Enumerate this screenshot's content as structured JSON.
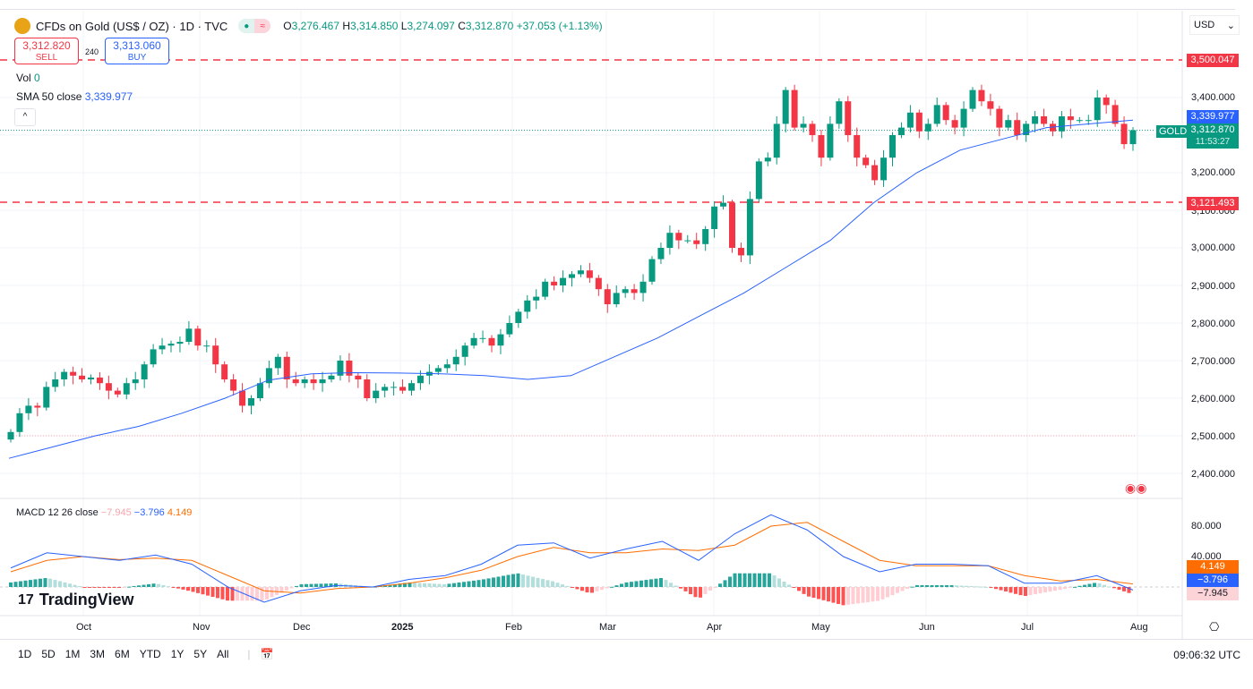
{
  "header": {
    "symbol": "CFDs on Gold (US$ / OZ) · 1D · TVC",
    "open_label": "O",
    "open": "3,276.467",
    "high_label": "H",
    "high": "3,314.850",
    "low_label": "L",
    "low": "3,274.097",
    "close_label": "C",
    "close": "3,312.870",
    "change": "+37.053 (+1.13%)"
  },
  "trade": {
    "sell_price": "3,312.820",
    "sell_label": "SELL",
    "spread": "240",
    "buy_price": "3,313.060",
    "buy_label": "BUY"
  },
  "indicators": {
    "vol_label": "Vol",
    "vol_value": "0",
    "sma_label": "SMA 50 close",
    "sma_value": "3,339.977",
    "macd_label": "MACD 12 26 close",
    "macd_hist": "−7.945",
    "macd_line": "−3.796",
    "macd_signal": "4.149"
  },
  "currency": "USD",
  "price_axis": {
    "labels": [
      "3,400.000",
      "3,200.000",
      "3,100.000",
      "3,000.000",
      "2,900.000",
      "2,800.000",
      "2,700.000",
      "2,600.000",
      "2,500.000",
      "2,400.000"
    ],
    "tags": {
      "resistance": "3,500.047",
      "sma": "3,339.977",
      "last": "3,312.870",
      "countdown": "11:53:27",
      "symbol_tag": "GOLD",
      "support": "3,121.493"
    }
  },
  "macd_axis": {
    "labels": [
      "80.000",
      "40.000"
    ]
  },
  "time_axis": [
    "Oct",
    "Nov",
    "Dec",
    "2025",
    "Feb",
    "Mar",
    "Apr",
    "May",
    "Jun",
    "Jul",
    "Aug"
  ],
  "bottom": {
    "ranges": [
      "1D",
      "5D",
      "1M",
      "3M",
      "6M",
      "YTD",
      "1Y",
      "5Y",
      "All"
    ],
    "clock": "09:06:32 UTC",
    "brand": "TradingView"
  },
  "colors": {
    "up": "#089981",
    "down": "#f23645",
    "sma": "#2962ff",
    "macd": "#2962ff",
    "signal": "#ff6d00"
  },
  "chart_data": {
    "type": "candlestick",
    "x_range": [
      "2024-09-12",
      "2025-07-30"
    ],
    "ylim": [
      2350,
      3560
    ],
    "hlines": [
      3500.047,
      3121.493
    ],
    "closes": [
      2510,
      2560,
      2580,
      2575,
      2630,
      2650,
      2670,
      2660,
      2650,
      2655,
      2640,
      2620,
      2610,
      2640,
      2650,
      2690,
      2730,
      2740,
      2745,
      2750,
      2785,
      2740,
      2740,
      2690,
      2650,
      2620,
      2580,
      2600,
      2640,
      2680,
      2710,
      2650,
      2640,
      2650,
      2640,
      2650,
      2660,
      2700,
      2660,
      2650,
      2600,
      2620,
      2630,
      2630,
      2620,
      2640,
      2660,
      2670,
      2680,
      2690,
      2710,
      2740,
      2760,
      2760,
      2740,
      2770,
      2800,
      2830,
      2860,
      2870,
      2910,
      2900,
      2920,
      2930,
      2940,
      2920,
      2890,
      2850,
      2880,
      2890,
      2880,
      2910,
      2970,
      3000,
      3040,
      3020,
      3020,
      3010,
      3050,
      3110,
      3120,
      3000,
      2980,
      3130,
      3230,
      3240,
      3330,
      3420,
      3320,
      3330,
      3300,
      3240,
      3330,
      3390,
      3300,
      3240,
      3220,
      3180,
      3240,
      3300,
      3320,
      3360,
      3310,
      3330,
      3380,
      3340,
      3320,
      3370,
      3420,
      3390,
      3370,
      3320,
      3340,
      3300,
      3330,
      3350,
      3330,
      3310,
      3350,
      3340,
      3340,
      3340,
      3400,
      3380,
      3330,
      3276,
      3313
    ],
    "sma50": [
      2440,
      2470,
      2500,
      2525,
      2560,
      2600,
      2648,
      2665,
      2668,
      2667,
      2665,
      2660,
      2650,
      2660,
      2710,
      2760,
      2820,
      2880,
      2950,
      3020,
      3120,
      3200,
      3260,
      3290,
      3320,
      3330,
      3340
    ],
    "macd": [
      25,
      45,
      40,
      35,
      42,
      30,
      0,
      -20,
      -5,
      2,
      0,
      10,
      15,
      30,
      55,
      58,
      38,
      50,
      60,
      35,
      70,
      95,
      75,
      40,
      20,
      30,
      30,
      28,
      5,
      5,
      15,
      -4
    ],
    "signal": [
      20,
      35,
      40,
      36,
      38,
      35,
      15,
      -5,
      -8,
      -2,
      0,
      5,
      12,
      22,
      40,
      52,
      45,
      45,
      50,
      48,
      55,
      80,
      85,
      60,
      35,
      28,
      28,
      28,
      15,
      8,
      10,
      4
    ]
  }
}
